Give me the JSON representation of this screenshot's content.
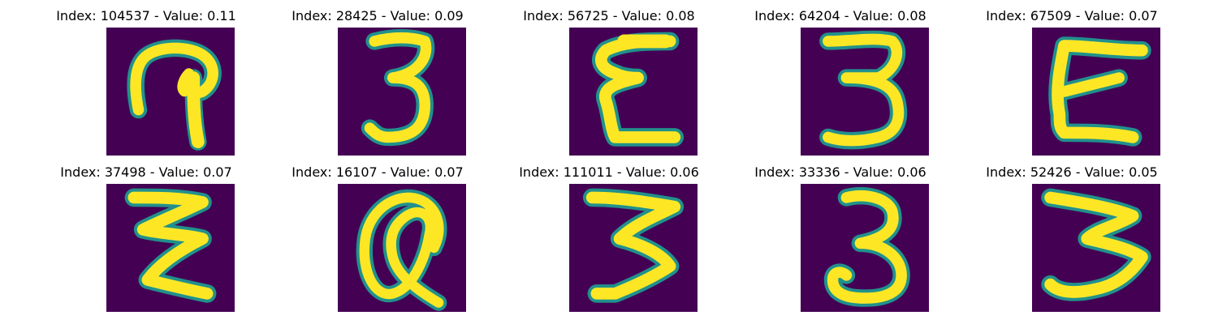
{
  "figure": {
    "panels": [
      {
        "title": "Index: 104537 - Value: 0.11",
        "glyph": "question-mark-like-digit"
      },
      {
        "title": "Index: 28425 - Value: 0.09",
        "glyph": "digit-3"
      },
      {
        "title": "Index: 56725 - Value: 0.08",
        "glyph": "letter-E-like-digit"
      },
      {
        "title": "Index: 64204 - Value: 0.08",
        "glyph": "digit-3"
      },
      {
        "title": "Index: 67509 - Value: 0.07",
        "glyph": "letter-E"
      },
      {
        "title": "Index: 37498 - Value: 0.07",
        "glyph": "zigzag-3"
      },
      {
        "title": "Index: 16107 - Value: 0.07",
        "glyph": "at-sign-like-digit"
      },
      {
        "title": "Index: 111011 - Value: 0.06",
        "glyph": "digit-3"
      },
      {
        "title": "Index: 33336 - Value: 0.06",
        "glyph": "digit-3"
      },
      {
        "title": "Index: 52426 - Value: 0.05",
        "glyph": "digit-3"
      }
    ],
    "colormap": {
      "background": "#440154",
      "edge": "#21918c",
      "mid": "#5ec962",
      "stroke": "#fde725"
    }
  }
}
